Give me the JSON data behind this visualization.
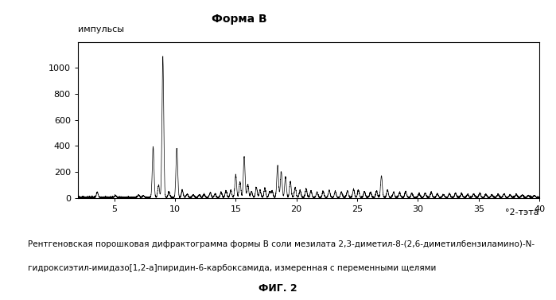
{
  "title": "Форма В",
  "ylabel": "импульсы",
  "xlabel": "°2-тэта",
  "xlim": [
    2,
    40
  ],
  "ylim": [
    0,
    1200
  ],
  "yticks": [
    0,
    200,
    400,
    600,
    800,
    1000
  ],
  "xticks": [
    5,
    10,
    15,
    20,
    25,
    30,
    35,
    40
  ],
  "caption_line1": "Рентгеновская порошковая дифрактограмма формы В соли мезилата 2,3-диметил-8-(2,6-диметилбензиламино)-N-",
  "caption_line2": "гидроксиэтил-имидазо[1,2-а]пиридин-6-карбоксамида, измеренная с переменными щелями",
  "figure_label": "ФИГ. 2",
  "peaks": [
    [
      3.6,
      40
    ],
    [
      5.1,
      12
    ],
    [
      7.0,
      18
    ],
    [
      7.4,
      12
    ],
    [
      8.2,
      390
    ],
    [
      8.65,
      95
    ],
    [
      9.0,
      1080
    ],
    [
      9.5,
      40
    ],
    [
      10.15,
      380
    ],
    [
      10.6,
      55
    ],
    [
      11.0,
      25
    ],
    [
      11.5,
      20
    ],
    [
      12.0,
      18
    ],
    [
      12.4,
      22
    ],
    [
      12.9,
      35
    ],
    [
      13.3,
      25
    ],
    [
      13.8,
      40
    ],
    [
      14.2,
      50
    ],
    [
      14.6,
      55
    ],
    [
      15.0,
      170
    ],
    [
      15.35,
      120
    ],
    [
      15.7,
      310
    ],
    [
      16.0,
      95
    ],
    [
      16.3,
      45
    ],
    [
      16.7,
      75
    ],
    [
      17.0,
      55
    ],
    [
      17.4,
      70
    ],
    [
      17.8,
      45
    ],
    [
      18.0,
      50
    ],
    [
      18.45,
      240
    ],
    [
      18.75,
      195
    ],
    [
      19.1,
      155
    ],
    [
      19.5,
      120
    ],
    [
      19.9,
      75
    ],
    [
      20.3,
      55
    ],
    [
      20.8,
      65
    ],
    [
      21.2,
      50
    ],
    [
      21.7,
      40
    ],
    [
      22.2,
      45
    ],
    [
      22.7,
      55
    ],
    [
      23.2,
      45
    ],
    [
      23.7,
      40
    ],
    [
      24.2,
      50
    ],
    [
      24.7,
      60
    ],
    [
      25.1,
      55
    ],
    [
      25.6,
      45
    ],
    [
      26.1,
      40
    ],
    [
      26.6,
      45
    ],
    [
      27.0,
      165
    ],
    [
      27.5,
      55
    ],
    [
      28.0,
      40
    ],
    [
      28.5,
      35
    ],
    [
      29.0,
      45
    ],
    [
      29.5,
      30
    ],
    [
      30.1,
      28
    ],
    [
      30.6,
      32
    ],
    [
      31.1,
      38
    ],
    [
      31.6,
      28
    ],
    [
      32.1,
      22
    ],
    [
      32.6,
      28
    ],
    [
      33.1,
      32
    ],
    [
      33.6,
      28
    ],
    [
      34.1,
      22
    ],
    [
      34.6,
      28
    ],
    [
      35.1,
      32
    ],
    [
      35.6,
      22
    ],
    [
      36.1,
      18
    ],
    [
      36.6,
      22
    ],
    [
      37.1,
      28
    ],
    [
      37.6,
      18
    ],
    [
      38.1,
      22
    ],
    [
      38.6,
      18
    ],
    [
      39.1,
      14
    ],
    [
      39.6,
      14
    ]
  ],
  "noise_seed": 42,
  "background_color": "#ffffff",
  "plot_bg_color": "#ffffff",
  "line_color": "#000000",
  "border_color": "#000000",
  "sigma": 0.07
}
